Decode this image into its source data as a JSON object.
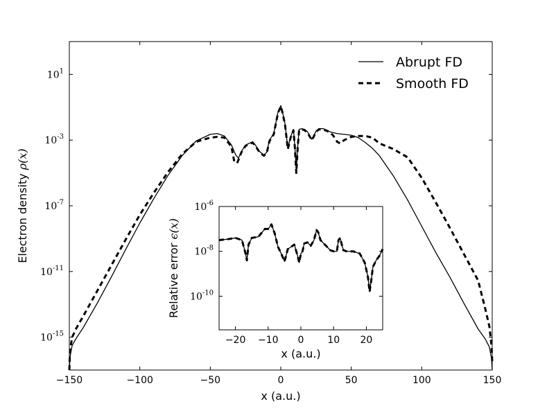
{
  "chart_data": [
    {
      "type": "line",
      "role": "main",
      "xlabel": "x (a.u.)",
      "ylabel_text": "Electron density ",
      "ylabel_math": "ρ(x)",
      "xlim": [
        -150,
        150
      ],
      "ylog10_lim": [
        -17,
        3
      ],
      "x_ticks": [
        {
          "value": -150,
          "label": "−150"
        },
        {
          "value": -100,
          "label": "−100"
        },
        {
          "value": -50,
          "label": "−50"
        },
        {
          "value": 0,
          "label": "0"
        },
        {
          "value": 50,
          "label": "50"
        },
        {
          "value": 100,
          "label": "100"
        },
        {
          "value": 150,
          "label": "150"
        }
      ],
      "y_ticks": [
        {
          "exp": 1,
          "base": "10",
          "sup": "1"
        },
        {
          "exp": -3,
          "base": "10",
          "sup": "-3"
        },
        {
          "exp": -7,
          "base": "10",
          "sup": "-7"
        },
        {
          "exp": -11,
          "base": "10",
          "sup": "-11"
        },
        {
          "exp": -15,
          "base": "10",
          "sup": "-15"
        }
      ],
      "legend": {
        "position": "top-right",
        "entries": [
          {
            "label": "Abrupt FD",
            "style": "solid"
          },
          {
            "label": "Smooth FD",
            "style": "dashed"
          }
        ]
      },
      "series": [
        {
          "name": "Abrupt FD",
          "style": "solid",
          "x": [
            -150,
            -149.5,
            -148,
            -145,
            -140,
            -130,
            -120,
            -110,
            -100,
            -90,
            -80,
            -70,
            -60,
            -50,
            -45,
            -40,
            -35,
            -32,
            -30,
            -28,
            -25,
            -20,
            -18,
            -15,
            -12,
            -10,
            -8,
            -5,
            -2,
            0,
            1,
            3,
            5,
            7,
            9,
            10,
            11,
            12,
            13,
            15,
            17,
            19,
            21,
            22,
            23,
            25,
            27,
            30,
            33,
            35,
            40,
            45,
            50,
            55,
            60,
            65,
            70,
            80,
            90,
            100,
            110,
            120,
            130,
            140,
            145,
            148,
            149.5,
            150
          ],
          "log10y": [
            -17,
            -16.2,
            -15.5,
            -15.05,
            -14.4,
            -12.9,
            -11.3,
            -9.65,
            -8.05,
            -6.55,
            -5.15,
            -3.95,
            -3.05,
            -2.65,
            -2.6,
            -2.75,
            -3.3,
            -3.9,
            -4.1,
            -3.7,
            -3.3,
            -3.1,
            -3.3,
            -3.7,
            -3.9,
            -3.75,
            -3.0,
            -2.6,
            -1.3,
            -0.9,
            -1.2,
            -2.0,
            -3.5,
            -2.8,
            -2.35,
            -3.4,
            -4.9,
            -3.4,
            -2.35,
            -2.3,
            -2.35,
            -2.5,
            -2.8,
            -2.95,
            -2.8,
            -2.45,
            -2.3,
            -2.3,
            -2.4,
            -2.5,
            -2.6,
            -2.65,
            -2.7,
            -2.85,
            -3.15,
            -3.5,
            -3.95,
            -5.2,
            -6.65,
            -8.25,
            -9.85,
            -11.35,
            -12.95,
            -14.5,
            -15.1,
            -15.6,
            -16.3,
            -17
          ]
        },
        {
          "name": "Smooth FD",
          "style": "dashed",
          "x": [
            -150,
            -149.5,
            -148,
            -145,
            -140,
            -130,
            -120,
            -110,
            -100,
            -90,
            -80,
            -70,
            -60,
            -50,
            -45,
            -40,
            -35,
            -33,
            -32,
            -31,
            -30,
            -28,
            -25,
            -20,
            -18,
            -15,
            -12,
            -10,
            -8,
            -5,
            -2,
            0,
            1,
            3,
            5,
            7,
            9,
            10,
            11,
            12,
            13,
            15,
            17,
            19,
            21,
            22,
            23,
            25,
            27,
            30,
            33,
            35,
            37,
            40,
            42,
            45,
            50,
            55,
            60,
            65,
            70,
            80,
            90,
            100,
            110,
            120,
            130,
            140,
            145,
            148,
            149.5,
            150
          ],
          "log10y": [
            -17,
            -15.8,
            -15.0,
            -14.45,
            -13.7,
            -12.15,
            -10.6,
            -9.05,
            -7.55,
            -6.2,
            -4.95,
            -3.85,
            -3.1,
            -2.85,
            -2.8,
            -2.85,
            -3.4,
            -4.3,
            -4.35,
            -4.4,
            -4.2,
            -3.75,
            -3.35,
            -3.15,
            -3.35,
            -3.75,
            -3.95,
            -3.8,
            -3.05,
            -2.65,
            -1.35,
            -0.95,
            -1.25,
            -2.05,
            -3.55,
            -2.85,
            -2.4,
            -3.45,
            -5.0,
            -3.45,
            -2.4,
            -2.35,
            -2.4,
            -2.55,
            -2.85,
            -3.0,
            -2.85,
            -2.5,
            -2.35,
            -2.35,
            -2.45,
            -2.55,
            -2.7,
            -3.1,
            -3.2,
            -3.0,
            -2.8,
            -2.75,
            -2.75,
            -2.85,
            -3.2,
            -3.55,
            -4.05,
            -5.3,
            -6.8,
            -8.35,
            -9.95,
            -11.55,
            -13.25,
            -14.35,
            -15.5,
            -16.5,
            -17
          ]
        }
      ]
    },
    {
      "type": "line",
      "role": "inset",
      "xlabel": "x (a.u.)",
      "ylabel_text": "Relative error ",
      "ylabel_math": "ϵ(x)",
      "xlim": [
        -25,
        25
      ],
      "ylog10_lim": [
        -11.5,
        -6
      ],
      "x_ticks": [
        {
          "value": -20,
          "label": "−20"
        },
        {
          "value": -10,
          "label": "−10"
        },
        {
          "value": 0,
          "label": "0"
        },
        {
          "value": 10,
          "label": "10"
        },
        {
          "value": 20,
          "label": "20"
        }
      ],
      "y_ticks": [
        {
          "exp": -6,
          "base": "10",
          "sup": "-6"
        },
        {
          "exp": -8,
          "base": "10",
          "sup": "-8"
        },
        {
          "exp": -10,
          "base": "10",
          "sup": "-10"
        }
      ],
      "series": [
        {
          "name": "Abrupt FD",
          "style": "solid",
          "x": [
            -25,
            -22,
            -20,
            -18,
            -17,
            -16.5,
            -16,
            -15,
            -13,
            -11,
            -10,
            -9,
            -8,
            -7,
            -6,
            -5,
            -4,
            -3,
            -2,
            -1,
            -0.5,
            0,
            0.5,
            1,
            2,
            3,
            4,
            4.8,
            5.3,
            6,
            7,
            8,
            9,
            10,
            11,
            11.5,
            12,
            12.5,
            13,
            14,
            16,
            18,
            19.5,
            20.5,
            21,
            21.5,
            22,
            23,
            24,
            25
          ],
          "log10y": [
            -7.5,
            -7.45,
            -7.4,
            -7.5,
            -8.05,
            -8.4,
            -7.7,
            -7.4,
            -7.35,
            -7.0,
            -7.0,
            -6.8,
            -7.2,
            -7.8,
            -8.1,
            -8.45,
            -7.9,
            -7.8,
            -7.7,
            -8.2,
            -8.5,
            -8.1,
            -8.0,
            -7.65,
            -7.6,
            -7.75,
            -7.5,
            -7.05,
            -7.15,
            -7.5,
            -7.65,
            -7.8,
            -7.95,
            -8.0,
            -8.0,
            -7.5,
            -7.4,
            -7.7,
            -7.95,
            -8.0,
            -8.0,
            -8.1,
            -8.5,
            -9.15,
            -9.8,
            -9.3,
            -8.7,
            -8.4,
            -8.2,
            -7.9
          ]
        },
        {
          "name": "Smooth FD",
          "style": "dashed",
          "x": [
            -25,
            -22,
            -20,
            -18,
            -17,
            -16.5,
            -16,
            -15,
            -13,
            -11,
            -10,
            -9,
            -8,
            -7,
            -6,
            -5,
            -4,
            -3,
            -2,
            -1,
            -0.5,
            0,
            0.5,
            1,
            2,
            3,
            4,
            4.8,
            5.3,
            6,
            7,
            8,
            9,
            10,
            11,
            11.5,
            12,
            12.5,
            13,
            14,
            16,
            18,
            19.5,
            20.5,
            21,
            21.5,
            22,
            23,
            24,
            25
          ],
          "log10y": [
            -7.5,
            -7.45,
            -7.4,
            -7.5,
            -8.05,
            -8.4,
            -7.7,
            -7.4,
            -7.35,
            -7.0,
            -7.0,
            -6.8,
            -7.2,
            -7.8,
            -8.1,
            -8.45,
            -7.9,
            -7.8,
            -7.7,
            -8.2,
            -8.5,
            -8.1,
            -8.0,
            -7.65,
            -7.6,
            -7.75,
            -7.5,
            -7.05,
            -7.15,
            -7.5,
            -7.65,
            -7.8,
            -7.95,
            -8.0,
            -8.0,
            -7.5,
            -7.4,
            -7.7,
            -7.95,
            -8.0,
            -8.0,
            -8.1,
            -8.5,
            -9.15,
            -9.8,
            -9.3,
            -8.7,
            -8.4,
            -8.2,
            -7.9
          ]
        }
      ]
    }
  ]
}
